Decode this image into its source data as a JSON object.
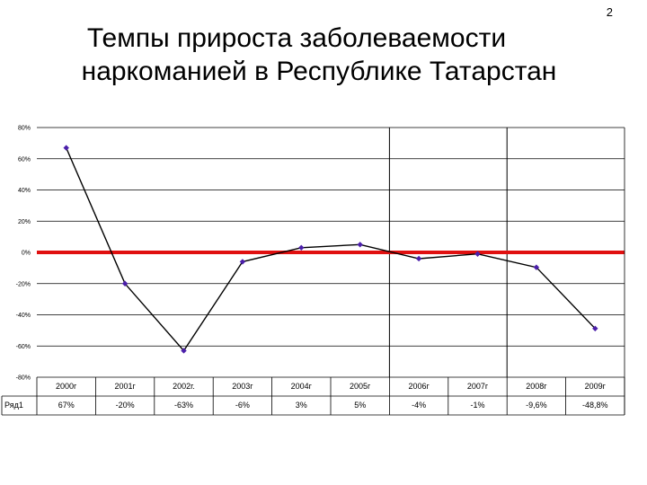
{
  "page_number": "2",
  "title": {
    "line1": "Темпы прироста заболеваемости",
    "line2": "наркоманией в Республике Татарстан"
  },
  "colors": {
    "series_line": "#000000",
    "marker": "#4b1faa",
    "zero_line": "#e01010",
    "grid": "#000000"
  },
  "chart_data": {
    "type": "line",
    "title": "",
    "xlabel": "",
    "ylabel": "",
    "categories": [
      "2000г",
      "2001г",
      "2002г.",
      "2003г",
      "2004г",
      "2005г",
      "2006г",
      "2007г",
      "2008г",
      "2009г"
    ],
    "series": [
      {
        "name": "Ряд1",
        "values": [
          67,
          -20,
          -63,
          -6,
          3,
          5,
          -4,
          -1,
          -9.6,
          -48.8
        ],
        "labels": [
          "67%",
          "-20%",
          "-63%",
          "-6%",
          "3%",
          "5%",
          "-4%",
          "-1%",
          "-9,6%",
          "-48,8%"
        ]
      }
    ],
    "ylim": [
      -80,
      80
    ],
    "y_ticks": [
      80,
      60,
      40,
      20,
      0,
      -20,
      -40,
      -60,
      -80
    ],
    "y_tick_labels": [
      "80%",
      "60%",
      "40%",
      "20%",
      "0%",
      "-20%",
      "-40%",
      "-60%",
      "-80%"
    ],
    "grid": "horizontal",
    "vertical_rules_between": [
      [
        "2005г",
        "2006г"
      ],
      [
        "2007г",
        "2008г"
      ]
    ],
    "reference_line": 0,
    "legend": "data-table"
  }
}
